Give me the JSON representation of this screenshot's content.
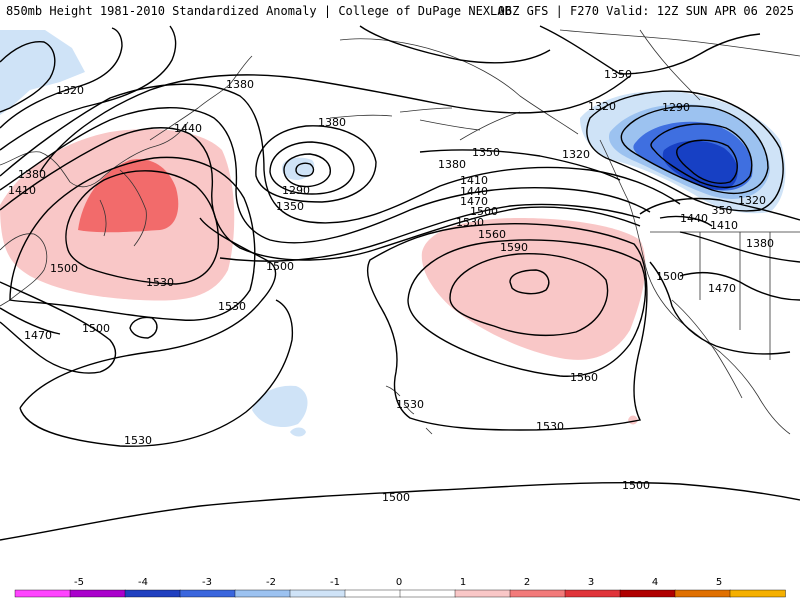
{
  "header": {
    "left_title": "850mb Height 1981-2010 Standardized Anomaly | College of DuPage NEXLAB",
    "right_title": "06Z GFS | F270 Valid: 12Z SUN APR 06 2025"
  },
  "map": {
    "contour_labels": [
      "1320",
      "1380",
      "1410",
      "1380",
      "1440",
      "1380",
      "1290",
      "1350",
      "1380",
      "1350",
      "1410",
      "1440",
      "1470",
      "1500",
      "1530",
      "1560",
      "1590",
      "1500",
      "1530",
      "1500",
      "1470",
      "1500",
      "1530",
      "1530",
      "1560",
      "1530",
      "1530",
      "1500",
      "1500",
      "1350",
      "1320",
      "1290",
      "1320",
      "1320",
      "350",
      "1410",
      "1440",
      "1380",
      "1500",
      "1470"
    ],
    "colors": {
      "neg1": "#cfe3f7",
      "neg2": "#9cc2f0",
      "neg3": "#3f6fe0",
      "neg4": "#1740c4",
      "pos1": "#f9c7c7",
      "pos2": "#f26b6b",
      "contour": "#000000",
      "coast": "#333333"
    }
  },
  "colorbar": {
    "ticks": [
      "-5",
      "-4",
      "-3",
      "-2",
      "-1",
      "0",
      "1",
      "2",
      "3",
      "4",
      "5"
    ],
    "colors": [
      "#ff44ff",
      "#aa00cc",
      "#2040c0",
      "#3a66dd",
      "#9cc2f0",
      "#cfe3f7",
      "#ffffff",
      "#ffffff",
      "#f9c7c7",
      "#f27a7a",
      "#e0343a",
      "#b00000",
      "#e07000",
      "#f5b000"
    ]
  }
}
